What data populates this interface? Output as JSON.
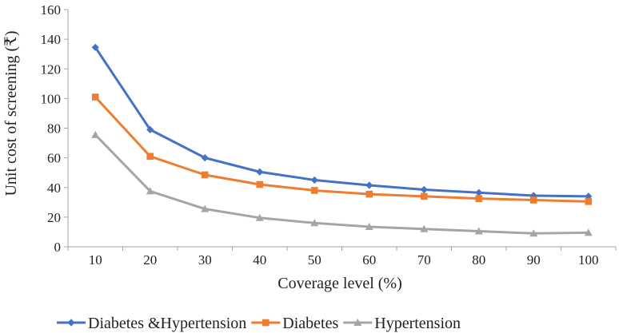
{
  "chart_data": {
    "type": "line",
    "title": "",
    "xlabel": "Coverage level (%)",
    "ylabel": "Unit cost of screening (₹)",
    "x": [
      10,
      20,
      30,
      40,
      50,
      60,
      70,
      80,
      90,
      100
    ],
    "xlim": [
      10,
      100
    ],
    "ylim": [
      0,
      160
    ],
    "yticks": [
      0,
      20,
      40,
      60,
      80,
      100,
      120,
      140,
      160
    ],
    "grid": false,
    "legend_position": "bottom",
    "series": [
      {
        "name": "Diabetes &Hypertension",
        "color": "#4472C4",
        "marker": "diamond",
        "values": [
          134.5,
          79,
          60,
          50.5,
          45,
          41.5,
          38.5,
          36.5,
          34.5,
          34
        ]
      },
      {
        "name": "Diabetes",
        "color": "#ED7D31",
        "marker": "square",
        "values": [
          101,
          61,
          48.5,
          42,
          38,
          35.5,
          34,
          32.5,
          31.5,
          30.5
        ]
      },
      {
        "name": "Hypertension",
        "color": "#A5A5A5",
        "marker": "triangle",
        "values": [
          75.5,
          37.5,
          25.5,
          19.5,
          16,
          13.5,
          12,
          10.5,
          9,
          9.5
        ]
      }
    ]
  }
}
